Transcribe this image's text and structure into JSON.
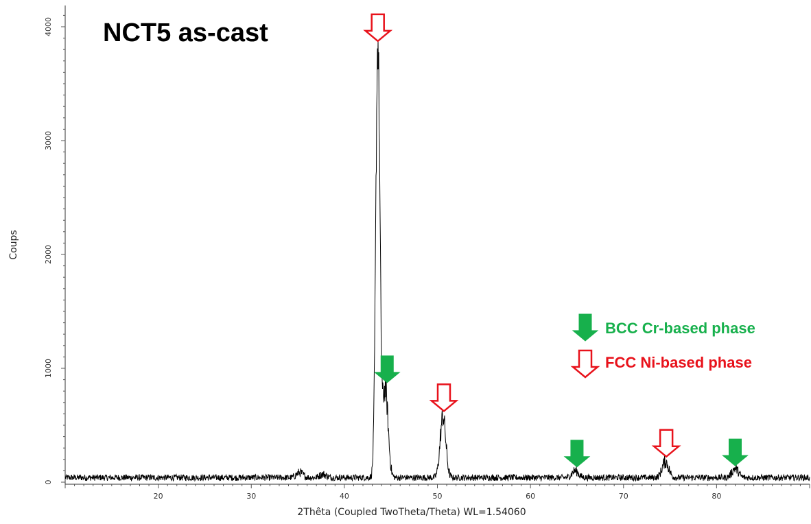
{
  "chart_data": {
    "type": "line",
    "title": "NCT5 as-cast",
    "xlabel": "2Thêta (Coupled TwoTheta/Theta) WL=1.54060",
    "ylabel": "Coups",
    "xlim": [
      10,
      90
    ],
    "ylim": [
      0,
      4000
    ],
    "x_ticks": [
      "20",
      "30",
      "40",
      "50",
      "60",
      "70",
      "80"
    ],
    "y_ticks": [
      "0",
      "1000",
      "2000",
      "3000",
      "4000"
    ],
    "grid": false,
    "series": [
      {
        "color": "#000000",
        "background_counts": 40,
        "peaks": [
          {
            "x": 35.2,
            "height": 45
          },
          {
            "x": 37.7,
            "height": 30
          },
          {
            "x": 43.6,
            "height": 3800
          },
          {
            "x": 44.4,
            "height": 780
          },
          {
            "x": 50.6,
            "height": 540
          },
          {
            "x": 64.8,
            "height": 60
          },
          {
            "x": 74.5,
            "height": 140
          },
          {
            "x": 82.0,
            "height": 80
          }
        ]
      }
    ],
    "annotations": [
      {
        "phase": "FCC",
        "x": 43.6,
        "y": 3850
      },
      {
        "phase": "BCC",
        "x": 44.6,
        "y": 850
      },
      {
        "phase": "FCC",
        "x": 50.7,
        "y": 600
      },
      {
        "phase": "BCC",
        "x": 65.0,
        "y": 110
      },
      {
        "phase": "FCC",
        "x": 74.6,
        "y": 200
      },
      {
        "phase": "BCC",
        "x": 82.0,
        "y": 120
      }
    ],
    "legend": {
      "placement": "middle-right",
      "items": [
        {
          "phase": "BCC",
          "label": "BCC Cr-based phase",
          "color": "#17b04c",
          "marker": "filled-down-arrow"
        },
        {
          "phase": "FCC",
          "label": "FCC Ni-based phase",
          "color": "#e8121b",
          "marker": "hollow-down-arrow"
        }
      ]
    }
  }
}
